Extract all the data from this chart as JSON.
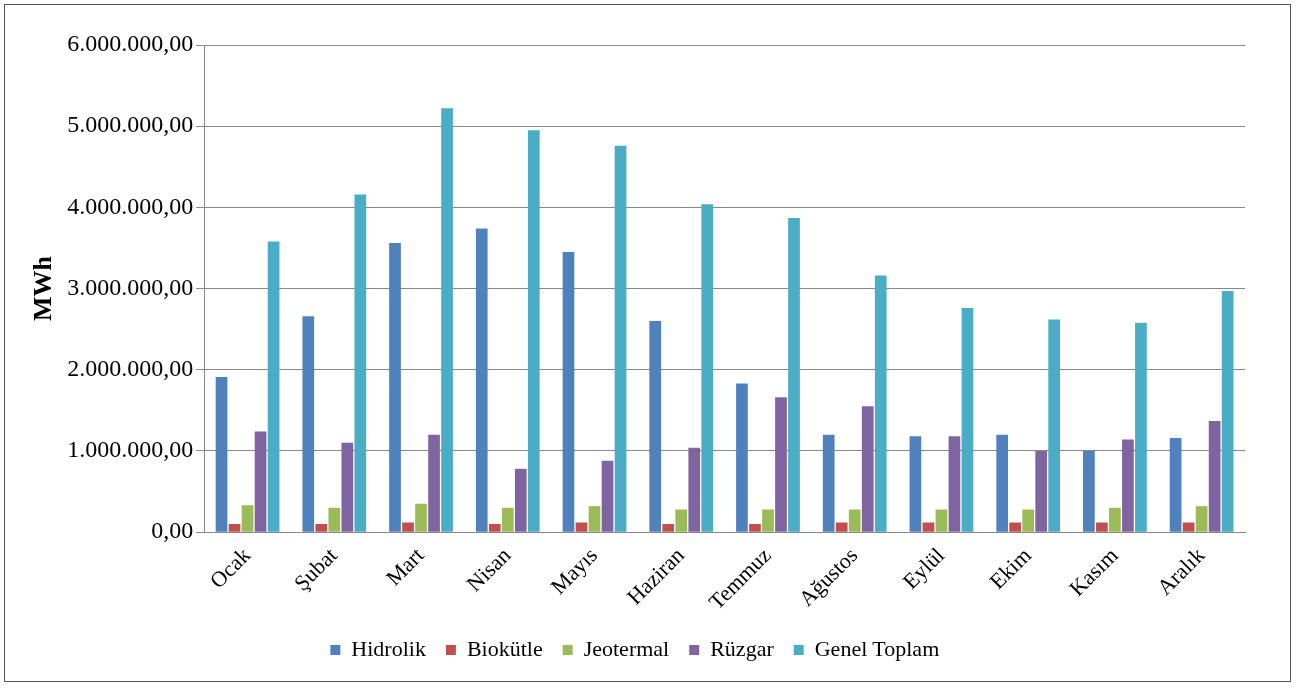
{
  "chart_data": {
    "type": "bar",
    "ylabel": "MWh",
    "categories": [
      "Ocak",
      "Şubat",
      "Mart",
      "Nisan",
      "Mayıs",
      "Haziran",
      "Temmuz",
      "Ağustos",
      "Eylül",
      "Ekim",
      "Kasım",
      "Aralık"
    ],
    "series": [
      {
        "name": "Hidrolik",
        "color": "#4f81bd",
        "values": [
          1910000,
          2660000,
          3560000,
          3740000,
          3450000,
          2600000,
          1830000,
          1200000,
          1180000,
          1200000,
          1000000,
          1160000
        ]
      },
      {
        "name": "Biokütle",
        "color": "#c0504d",
        "values": [
          100000,
          100000,
          120000,
          100000,
          120000,
          100000,
          100000,
          120000,
          120000,
          120000,
          120000,
          120000
        ]
      },
      {
        "name": "Jeotermal",
        "color": "#9bbb59",
        "values": [
          330000,
          300000,
          350000,
          300000,
          320000,
          280000,
          280000,
          280000,
          280000,
          280000,
          300000,
          320000
        ]
      },
      {
        "name": "Rüzgar",
        "color": "#8064a2",
        "values": [
          1240000,
          1100000,
          1200000,
          780000,
          880000,
          1040000,
          1660000,
          1550000,
          1180000,
          1000000,
          1140000,
          1370000
        ]
      },
      {
        "name": "Genel Toplam",
        "color": "#4bacc6",
        "values": [
          3580000,
          4160000,
          5220000,
          4950000,
          4760000,
          4040000,
          3870000,
          3160000,
          2760000,
          2620000,
          2580000,
          2970000
        ]
      }
    ],
    "ylim": [
      0,
      6000000
    ],
    "yticks": [
      {
        "value": 0,
        "label": "0,00"
      },
      {
        "value": 1000000,
        "label": "1.000.000,00"
      },
      {
        "value": 2000000,
        "label": "2.000.000,00"
      },
      {
        "value": 3000000,
        "label": "3.000.000,00"
      },
      {
        "value": 4000000,
        "label": "4.000.000,00"
      },
      {
        "value": 5000000,
        "label": "5.000.000,00"
      },
      {
        "value": 6000000,
        "label": "6.000.000,00"
      }
    ],
    "grid": "y",
    "legend": "bottom"
  }
}
